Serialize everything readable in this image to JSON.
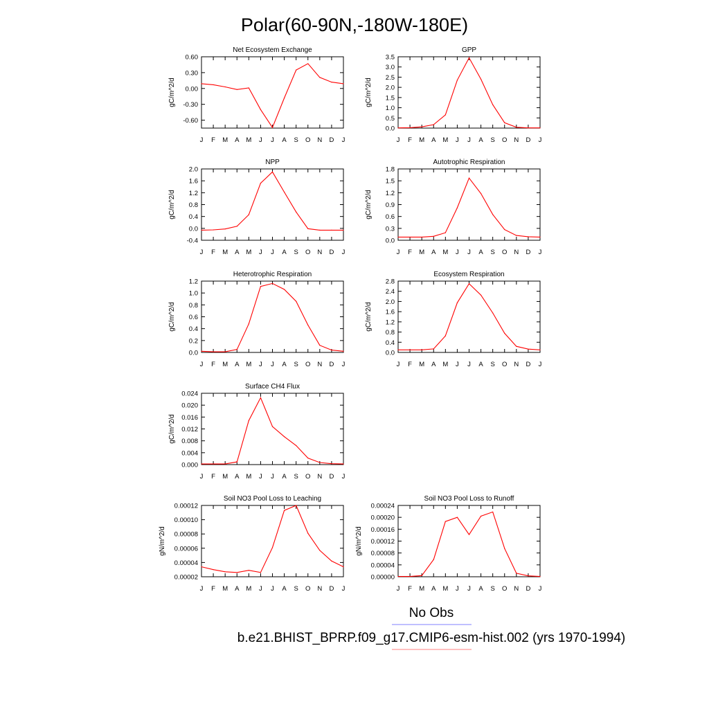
{
  "figure": {
    "title": "Polar(60-90N,-180W-180E)",
    "legend": [
      {
        "label": "No Obs",
        "color": "#8080ff"
      },
      {
        "label": "b.e21.BHIST_BPRP.f09_g17.CMIP6-esm-hist.002 (yrs 1970-1994)",
        "color": "#ff8080"
      }
    ],
    "line_color": "#ff0000"
  },
  "chart_data": [
    {
      "type": "line",
      "title": "Net Ecosystem Exchange",
      "ylabel": "gC/m^2/d",
      "categories": [
        "J",
        "F",
        "M",
        "A",
        "M",
        "J",
        "J",
        "A",
        "S",
        "O",
        "N",
        "D",
        "J"
      ],
      "ylim": [
        -0.75,
        0.6
      ],
      "yticks": [
        "0.60",
        "0.30",
        "0.00",
        "-0.30",
        "-0.60"
      ],
      "ytick_values": [
        0.6,
        0.3,
        0.0,
        -0.3,
        -0.6
      ],
      "series": [
        {
          "values": [
            0.09,
            0.07,
            0.03,
            -0.02,
            0.01,
            -0.4,
            -0.74,
            -0.18,
            0.35,
            0.47,
            0.21,
            0.12,
            0.09
          ]
        }
      ]
    },
    {
      "type": "line",
      "title": "GPP",
      "ylabel": "gC/m^2/d",
      "categories": [
        "J",
        "F",
        "M",
        "A",
        "M",
        "J",
        "J",
        "A",
        "S",
        "O",
        "N",
        "D",
        "J"
      ],
      "ylim": [
        0,
        3.5
      ],
      "yticks": [
        "3.5",
        "3.0",
        "2.5",
        "2.0",
        "1.5",
        "1.0",
        "0.5",
        "0.0"
      ],
      "ytick_values": [
        3.5,
        3.0,
        2.5,
        2.0,
        1.5,
        1.0,
        0.5,
        0.0
      ],
      "series": [
        {
          "values": [
            0.01,
            0.02,
            0.06,
            0.17,
            0.65,
            2.35,
            3.45,
            2.4,
            1.15,
            0.26,
            0.04,
            0.01,
            0.01
          ]
        }
      ]
    },
    {
      "type": "line",
      "title": "NPP",
      "ylabel": "gC/m^2/d",
      "categories": [
        "J",
        "F",
        "M",
        "A",
        "M",
        "J",
        "J",
        "A",
        "S",
        "O",
        "N",
        "D",
        "J"
      ],
      "ylim": [
        -0.4,
        2.0
      ],
      "yticks": [
        "2.0",
        "1.6",
        "1.2",
        "0.8",
        "0.4",
        "0.0",
        "-0.4"
      ],
      "ytick_values": [
        2.0,
        1.6,
        1.2,
        0.8,
        0.4,
        0.0,
        -0.4
      ],
      "series": [
        {
          "values": [
            -0.06,
            -0.05,
            -0.02,
            0.07,
            0.46,
            1.52,
            1.9,
            1.22,
            0.55,
            -0.01,
            -0.06,
            -0.06,
            -0.06
          ]
        }
      ]
    },
    {
      "type": "line",
      "title": "Autotrophic Respiration",
      "ylabel": "gC/m^2/d",
      "categories": [
        "J",
        "F",
        "M",
        "A",
        "M",
        "J",
        "J",
        "A",
        "S",
        "O",
        "N",
        "D",
        "J"
      ],
      "ylim": [
        0,
        1.8
      ],
      "yticks": [
        "1.8",
        "1.5",
        "1.2",
        "0.9",
        "0.6",
        "0.3",
        "0.0"
      ],
      "ytick_values": [
        1.8,
        1.5,
        1.2,
        0.9,
        0.6,
        0.3,
        0.0
      ],
      "series": [
        {
          "values": [
            0.08,
            0.08,
            0.08,
            0.1,
            0.19,
            0.82,
            1.57,
            1.18,
            0.65,
            0.27,
            0.12,
            0.09,
            0.08
          ]
        }
      ]
    },
    {
      "type": "line",
      "title": "Heterotrophic Respiration",
      "ylabel": "gC/m^2/d",
      "categories": [
        "J",
        "F",
        "M",
        "A",
        "M",
        "J",
        "J",
        "A",
        "S",
        "O",
        "N",
        "D",
        "J"
      ],
      "ylim": [
        0,
        1.2
      ],
      "yticks": [
        "1.2",
        "1.0",
        "0.8",
        "0.6",
        "0.4",
        "0.2",
        "0.0"
      ],
      "ytick_values": [
        1.2,
        1.0,
        0.8,
        0.6,
        0.4,
        0.2,
        0.0
      ],
      "series": [
        {
          "values": [
            0.02,
            0.01,
            0.01,
            0.05,
            0.48,
            1.11,
            1.16,
            1.06,
            0.86,
            0.46,
            0.12,
            0.04,
            0.02
          ]
        }
      ]
    },
    {
      "type": "line",
      "title": "Ecosystem Respiration",
      "ylabel": "gC/m^2/d",
      "categories": [
        "J",
        "F",
        "M",
        "A",
        "M",
        "J",
        "J",
        "A",
        "S",
        "O",
        "N",
        "D",
        "J"
      ],
      "ylim": [
        0,
        2.8
      ],
      "yticks": [
        "2.8",
        "2.4",
        "2.0",
        "1.6",
        "1.2",
        "0.8",
        "0.4",
        "0.0"
      ],
      "ytick_values": [
        2.8,
        2.4,
        2.0,
        1.6,
        1.2,
        0.8,
        0.4,
        0.0
      ],
      "series": [
        {
          "values": [
            0.1,
            0.1,
            0.1,
            0.14,
            0.65,
            1.95,
            2.7,
            2.25,
            1.55,
            0.75,
            0.24,
            0.13,
            0.1
          ]
        }
      ]
    },
    {
      "type": "line",
      "title": "Surface CH4 Flux",
      "ylabel": "gC/m^2/d",
      "categories": [
        "J",
        "F",
        "M",
        "A",
        "M",
        "J",
        "J",
        "A",
        "S",
        "O",
        "N",
        "D",
        "J"
      ],
      "ylim": [
        0,
        0.024
      ],
      "yticks": [
        "0.024",
        "0.020",
        "0.016",
        "0.012",
        "0.008",
        "0.004",
        "0.000"
      ],
      "ytick_values": [
        0.024,
        0.02,
        0.016,
        0.012,
        0.008,
        0.004,
        0.0
      ],
      "series": [
        {
          "values": [
            0.0002,
            0.0002,
            0.0002,
            0.0009,
            0.0148,
            0.0225,
            0.0128,
            0.0094,
            0.0064,
            0.0022,
            0.0007,
            0.0003,
            0.0002
          ]
        }
      ]
    },
    {
      "type": "line",
      "title": "Soil NO3 Pool Loss to Leaching",
      "ylabel": "gN/m^2/d",
      "categories": [
        "J",
        "F",
        "M",
        "A",
        "M",
        "J",
        "J",
        "A",
        "S",
        "O",
        "N",
        "D",
        "J"
      ],
      "ylim": [
        2e-05,
        0.00012
      ],
      "yticks": [
        "0.00012",
        "0.00010",
        "0.00008",
        "0.00006",
        "0.00004",
        "0.00002"
      ],
      "ytick_values": [
        0.00012,
        0.0001,
        8e-05,
        6e-05,
        4e-05,
        2e-05
      ],
      "series": [
        {
          "values": [
            3.4e-05,
            3e-05,
            2.7e-05,
            2.6e-05,
            2.9e-05,
            2.6e-05,
            6.1e-05,
            0.000113,
            0.00012,
            8.1e-05,
            5.7e-05,
            4.2e-05,
            3.4e-05
          ]
        }
      ]
    },
    {
      "type": "line",
      "title": "Soil NO3 Pool Loss to Runoff",
      "ylabel": "gN/m^2/d",
      "categories": [
        "J",
        "F",
        "M",
        "A",
        "M",
        "J",
        "J",
        "A",
        "S",
        "O",
        "N",
        "D",
        "J"
      ],
      "ylim": [
        0,
        0.00024
      ],
      "yticks": [
        "0.00024",
        "0.00020",
        "0.00016",
        "0.00012",
        "0.00008",
        "0.00004",
        "0.00000"
      ],
      "ytick_values": [
        0.00024,
        0.0002,
        0.00016,
        0.00012,
        8e-05,
        4e-05,
        0.0
      ],
      "series": [
        {
          "values": [
            1e-06,
            1e-06,
            4e-06,
            5.8e-05,
            0.000186,
            0.0002,
            0.000142,
            0.000204,
            0.000218,
            9.5e-05,
            1.2e-05,
            3e-06,
            1e-06
          ]
        }
      ]
    }
  ]
}
